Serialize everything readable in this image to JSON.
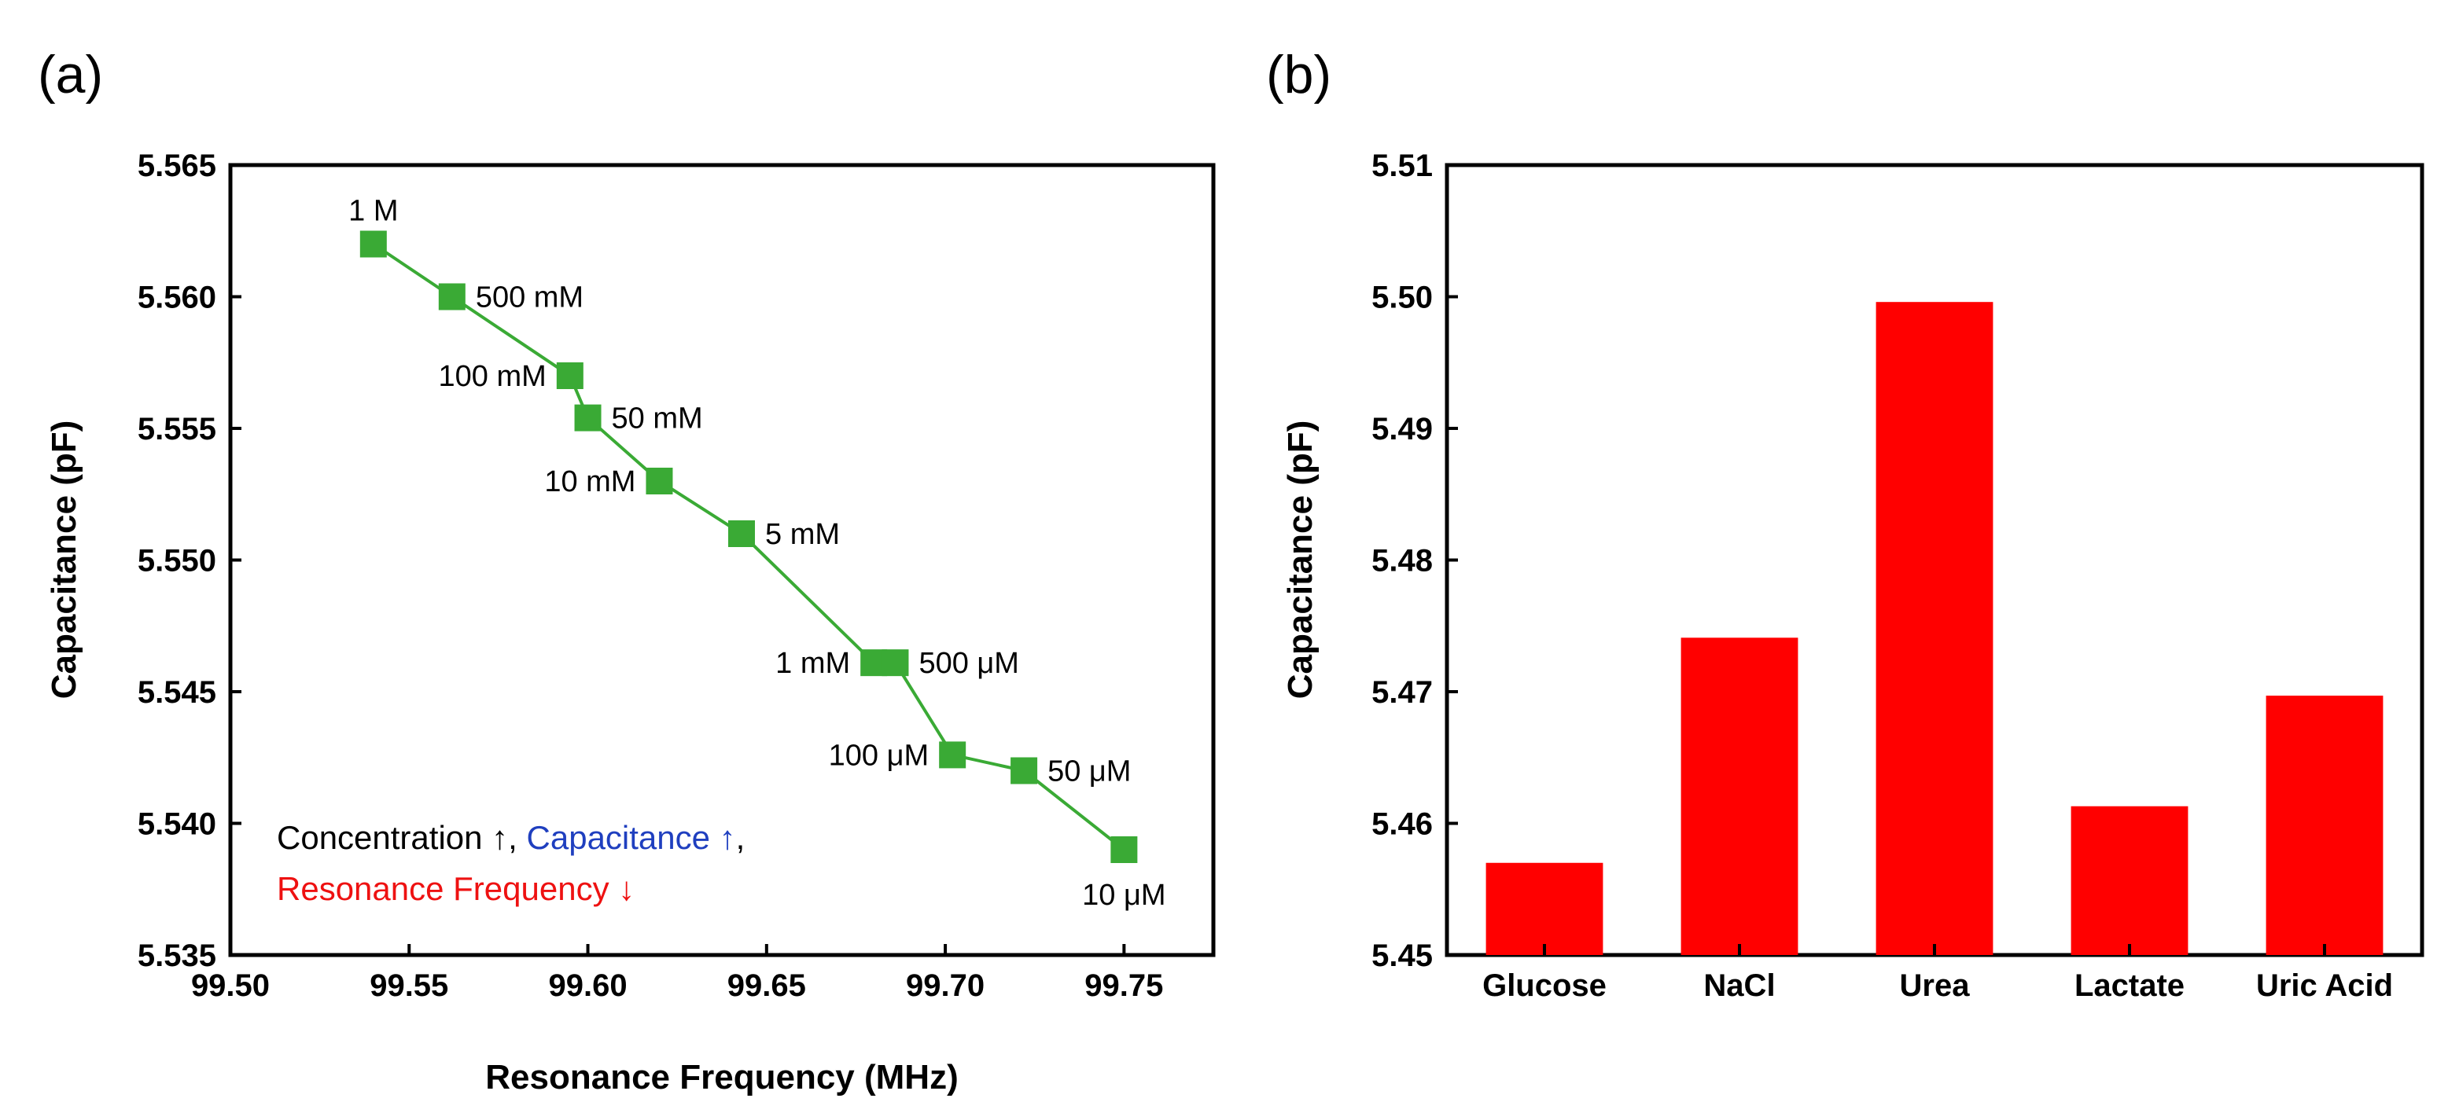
{
  "panels": {
    "a": "(a)",
    "b": "(b)"
  },
  "annotation": {
    "part1": "Concentration ↑",
    "sep1": ", ",
    "part2": "Capacitance ↑",
    "sep2": ",",
    "part3": "Resonance Frequency ↓",
    "colors": {
      "part1": "#000000",
      "part2": "#1f3fbf",
      "part3": "#ee1111"
    }
  },
  "chart_data": [
    {
      "type": "line",
      "panel": "(a)",
      "xlabel": "Resonance Frequency (MHz)",
      "ylabel": "Capacitance (pF)",
      "xlim": [
        99.5,
        99.775
      ],
      "ylim": [
        5.535,
        5.565
      ],
      "xticks": [
        99.5,
        99.55,
        99.6,
        99.65,
        99.7,
        99.75
      ],
      "xtick_labels": [
        "99.50",
        "99.55",
        "99.60",
        "99.65",
        "99.70",
        "99.75"
      ],
      "yticks": [
        5.535,
        5.54,
        5.545,
        5.55,
        5.555,
        5.56,
        5.565
      ],
      "ytick_labels": [
        "5.535",
        "5.540",
        "5.545",
        "5.550",
        "5.555",
        "5.560",
        "5.565"
      ],
      "marker": "square",
      "color": "#3aaa35",
      "series": [
        {
          "name": "Concentration",
          "x": [
            99.54,
            99.562,
            99.595,
            99.6,
            99.62,
            99.643,
            99.68,
            99.686,
            99.702,
            99.722,
            99.75
          ],
          "y": [
            5.562,
            5.56,
            5.557,
            5.5554,
            5.553,
            5.551,
            5.5461,
            5.5461,
            5.5426,
            5.542,
            5.539
          ],
          "labels": [
            "1 M",
            "500 mM",
            "100 mM",
            "50 mM",
            "10 mM",
            "5 mM",
            "1 mM",
            "500 μM",
            "100 μM",
            "50 μM",
            "10 μM"
          ],
          "label_pos": [
            "top",
            "right",
            "left",
            "right",
            "left",
            "right",
            "left",
            "right",
            "left",
            "right",
            "below"
          ]
        }
      ]
    },
    {
      "type": "bar",
      "panel": "(b)",
      "ylabel": "Capacitance (pF)",
      "xlabel": "",
      "categories": [
        "Glucose",
        "NaCl",
        "Urea",
        "Lactate",
        "Uric Acid"
      ],
      "values": [
        5.457,
        5.4741,
        5.4996,
        5.4613,
        5.4697
      ],
      "ylim": [
        5.45,
        5.51
      ],
      "yticks": [
        5.45,
        5.46,
        5.47,
        5.48,
        5.49,
        5.5,
        5.51
      ],
      "ytick_labels": [
        "5.45",
        "5.46",
        "5.47",
        "5.48",
        "5.49",
        "5.50",
        "5.51"
      ],
      "color": "#ff0000"
    }
  ]
}
